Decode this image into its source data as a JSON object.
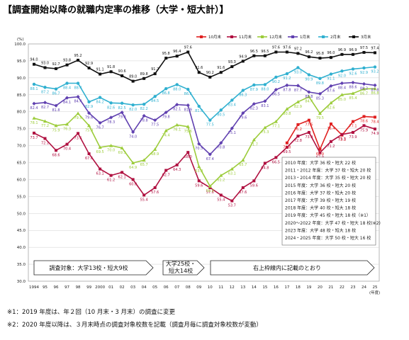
{
  "title": "【調査開始以降の就職内定率の推移（大学・短大計）】",
  "chart_data": {
    "type": "line",
    "ylabel": "(%)",
    "xunit": "(年度)",
    "ylim": [
      30,
      100
    ],
    "yticks": [
      "30.0",
      "35.0",
      "40.0",
      "45.0",
      "50.0",
      "55.0",
      "60.0",
      "65.0",
      "70.0",
      "75.0",
      "80.0",
      "85.0",
      "90.0",
      "95.0",
      "100.0"
    ],
    "x": [
      "1994",
      "95",
      "96",
      "97",
      "98",
      "99",
      "2000",
      "01",
      "02",
      "03",
      "04",
      "05",
      "06",
      "07",
      "08",
      "09",
      "10",
      "11",
      "12",
      "13",
      "14",
      "15",
      "16",
      "17",
      "18",
      "19",
      "20",
      "21",
      "22",
      "23",
      "24",
      "25"
    ],
    "legend_position": "top-right",
    "series": [
      {
        "name": "10月末",
        "color": "#e02020",
        "marker": "square",
        "values": [
          null,
          null,
          null,
          null,
          null,
          null,
          null,
          null,
          null,
          null,
          null,
          null,
          null,
          null,
          null,
          null,
          null,
          null,
          null,
          null,
          null,
          null,
          null,
          70.8,
          76.2,
          77.5,
          68.9,
          76.4,
          73.1,
          77.1,
          78.6,
          78.4
        ]
      },
      {
        "name": "11月末",
        "color": "#b01040",
        "marker": "square",
        "values": [
          null,
          null,
          null,
          null,
          null,
          null,
          null,
          null,
          null,
          null,
          null,
          null,
          null,
          null,
          null,
          null,
          null,
          null,
          null,
          null,
          null,
          null,
          null,
          null,
          null,
          null,
          null,
          null,
          null,
          null,
          null,
          null
        ]
      },
      {
        "name": "12月末",
        "color": "#9ccc3a",
        "marker": "triangle",
        "values": [
          null,
          null,
          null,
          null,
          null,
          null,
          null,
          null,
          null,
          null,
          null,
          null,
          null,
          null,
          null,
          null,
          null,
          null,
          null,
          null,
          null,
          null,
          null,
          null,
          null,
          null,
          null,
          null,
          null,
          null,
          null,
          null
        ]
      },
      {
        "name": "1月末",
        "color": "#6040b0",
        "marker": "diamond",
        "values": [
          null,
          null,
          null,
          null,
          null,
          null,
          null,
          null,
          null,
          null,
          null,
          null,
          null,
          null,
          null,
          null,
          null,
          null,
          null,
          null,
          null,
          null,
          null,
          null,
          null,
          null,
          null,
          null,
          null,
          null,
          null,
          null
        ]
      },
      {
        "name": "2月末",
        "color": "#30b0d0",
        "marker": "circle",
        "values": [
          null,
          null,
          null,
          null,
          null,
          null,
          null,
          null,
          null,
          null,
          null,
          null,
          null,
          null,
          null,
          null,
          null,
          null,
          null,
          null,
          null,
          null,
          null,
          null,
          null,
          null,
          null,
          null,
          null,
          null,
          null,
          null
        ]
      },
      {
        "name": "3月末",
        "color": "#111111",
        "marker": "square",
        "values": [
          94.0,
          93.0,
          92.7,
          93.8,
          95.2,
          92.9,
          91.1,
          91.8,
          90.6,
          89.0,
          89.8,
          91.2,
          95.8,
          96.4,
          null,
          91.6,
          90.2,
          91.6,
          93.3,
          94.9,
          96.5,
          96.5,
          97.6,
          97.6,
          97.2,
          96.2,
          95.8,
          96.0,
          96.9,
          96.9,
          97.5,
          null
        ]
      }
    ],
    "point_labels": [
      {
        "s": 0,
        "i": 17,
        "t": "70.8"
      },
      {
        "s": 0,
        "i": 18,
        "t": "76.2"
      },
      {
        "s": 0,
        "i": 19,
        "t": "77.5"
      },
      {
        "s": 0,
        "i": 20,
        "t": "68.9"
      },
      {
        "s": 0,
        "i": 21,
        "t": "76.4"
      },
      {
        "s": 0,
        "i": 22,
        "t": "73.1"
      },
      {
        "s": 0,
        "i": 23,
        "t": "77.1"
      },
      {
        "s": 0,
        "i": 24,
        "t": "78.6"
      },
      {
        "s": 0,
        "i": 25,
        "t": "78.4"
      }
    ],
    "points_text": {
      "p3": [
        "94.0",
        "93.0",
        "92.7",
        "93.8",
        "95.2",
        "92.9",
        "91.1",
        "91.8",
        "90.6",
        "89.0",
        "89.8",
        "91.2",
        "95.8",
        "96.4",
        "97.6",
        "91.6",
        "90.2",
        "91.6",
        "93.3",
        "94.9",
        "96.5",
        "96.5",
        "97.6",
        "97.6",
        "97.2",
        "96.2",
        "95.8",
        "96.0",
        "96.9",
        "96.9",
        "97.5",
        "97.4"
      ]
    }
  },
  "lines": {
    "p10": [
      null,
      null,
      null,
      null,
      null,
      null,
      null,
      null,
      null,
      null,
      null,
      null,
      null,
      null,
      null,
      null,
      null,
      null,
      null,
      null,
      null,
      null,
      null,
      70.8,
      76.2,
      77.5,
      68.9,
      76.4,
      73.1,
      77.1,
      78.6,
      78.4
    ],
    "p11": [
      73.7,
      72.1,
      68.6,
      70.4,
      73.6,
      67.6,
      63.1,
      61.2,
      62.1,
      60.0,
      55.4,
      57.6,
      62.7,
      64.3,
      68.0,
      59.6,
      57.6,
      55.4,
      53.7,
      57.6,
      59.6,
      64.8,
      66.5,
      69.5,
      72.8,
      73.9,
      67.9,
      71.2,
      73.3,
      73.9,
      75.9,
      74.9
    ],
    "p12": [
      78.1,
      77.2,
      75.9,
      76.3,
      79.5,
      75.9,
      69.5,
      70.0,
      69.3,
      64.9,
      65.7,
      68.9,
      74.4,
      76.1,
      75.6,
      63.8,
      58.0,
      61.2,
      63.1,
      65.7,
      71.7,
      75.3,
      77.1,
      80.8,
      82.9,
      84.4,
      79.5,
      82.6,
      85.0,
      85.4,
      86.7,
      86.8
    ],
    "p1": [
      82.4,
      82.7,
      81.8,
      84.1,
      84.4,
      79.6,
      76.7,
      78.3,
      79.8,
      74.0,
      78.8,
      77.5,
      79.8,
      82.1,
      81.9,
      70.5,
      67.4,
      70.8,
      75.1,
      79.6,
      82.3,
      83.1,
      86.5,
      87.8,
      87.7,
      85.8,
      85.3,
      87.6,
      88.4,
      88.6,
      88.2,
      87.8
    ],
    "p2": [
      88.1,
      87.2,
      86.7,
      88.4,
      88.4,
      82.9,
      84.2,
      82.6,
      82.5,
      82.0,
      82.2,
      84.5,
      86.8,
      88.0,
      86.6,
      81.6,
      77.5,
      80.5,
      83.4,
      86.3,
      87.9,
      88.0,
      90.2,
      91.2,
      93.0,
      90.9,
      89.8,
      91.1,
      92.0,
      92.6,
      92.9,
      93.2
    ],
    "p3": [
      94.0,
      93.0,
      92.7,
      93.8,
      95.2,
      92.9,
      91.1,
      91.8,
      90.6,
      89.0,
      89.8,
      91.2,
      95.8,
      96.4,
      97.6,
      91.6,
      90.2,
      91.6,
      93.3,
      94.9,
      96.5,
      96.5,
      97.6,
      97.6,
      97.2,
      96.2,
      95.8,
      96.0,
      96.9,
      96.9,
      97.5,
      97.4
    ]
  },
  "legend": [
    "10月末",
    "11月末",
    "12月末",
    "1月末",
    "2月末",
    "3月末"
  ],
  "info_box": [
    "2010 年度：大学 36 校・短大 22 校",
    "2011・2012 年度：大学 37 校・短大 20 校",
    "2013・2014 年度：大学 35 校・短大 20 校",
    "2015 年度：大学 36 校・短大 20 校",
    "2016 年度：大学 37 校・短大 20 校",
    "2017 年度：大学 39 校・短大 19 校",
    "2018 年度：大学 40 校・短大 18 校",
    "2019 年度：大学 45 校・短大 18 校（※1）",
    "2020～2022 年度：大学 47 校・短大 18 校(※2)",
    "2023 年度：大学 48 校・短大 18 校",
    "2024・2025 年度：大学 50 校・短大 16 校"
  ],
  "arrows": [
    "調査対象：大学13校・短大9校",
    "大学25校・",
    "短大14校",
    "右上枠線内に記載のとおり"
  ],
  "footnotes": [
    "※1：2019 年度は、年２回（10 月末・3 月末）の調査に変更",
    "※2：2020 年度以降は、３月末時点の調査対象校数を記載（調査月毎に調査対象校数が変動）"
  ]
}
